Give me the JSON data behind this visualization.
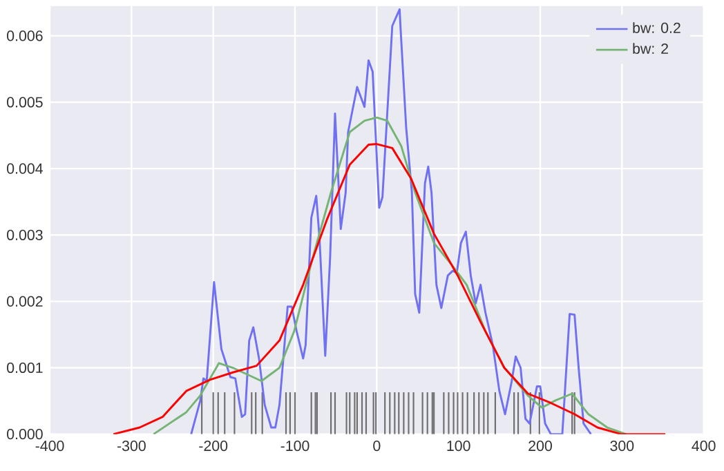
{
  "chart_data": {
    "type": "line",
    "xlim": [
      -400,
      400
    ],
    "ylim": [
      0,
      0.00645
    ],
    "xticks": [
      -400,
      -300,
      -200,
      -100,
      0,
      100,
      200,
      300,
      400
    ],
    "yticks": [
      {
        "value": 0,
        "label": "0.000"
      },
      {
        "value": 0.001,
        "label": "0.001"
      },
      {
        "value": 0.002,
        "label": "0.002"
      },
      {
        "value": 0.003,
        "label": "0.003"
      },
      {
        "value": 0.004,
        "label": "0.004"
      },
      {
        "value": 0.005,
        "label": "0.005"
      },
      {
        "value": 0.006,
        "label": "0.006"
      }
    ],
    "grid": true,
    "legend": "top right",
    "series": [
      {
        "type": "bar",
        "color": "#444444",
        "x": [
          -214,
          -200,
          -194,
          -186,
          -174,
          -153,
          -148,
          -140,
          -111,
          -106,
          -100,
          -80,
          -75,
          -73,
          -56,
          -51,
          -37,
          -33,
          -27,
          -24,
          -18,
          -13,
          -4,
          -1,
          10,
          16,
          22,
          27,
          33,
          39,
          45,
          56,
          62,
          68,
          70,
          82,
          88,
          94,
          99,
          105,
          111,
          119,
          125,
          131,
          136,
          145,
          168,
          173,
          188,
          199,
          239,
          242
        ],
        "values": [
          0.00063,
          0.00063,
          0.00063,
          0.00063,
          0.00063,
          0.00063,
          0.00063,
          0.00063,
          0.00063,
          0.00063,
          0.00063,
          0.00063,
          0.00063,
          0.00063,
          0.00063,
          0.00063,
          0.00063,
          0.00063,
          0.00063,
          0.00063,
          0.00063,
          0.00063,
          0.00063,
          0.00063,
          0.00063,
          0.00063,
          0.00063,
          0.00063,
          0.00063,
          0.00063,
          0.00063,
          0.00063,
          0.00063,
          0.00063,
          0.00063,
          0.00063,
          0.00063,
          0.00063,
          0.00063,
          0.00063,
          0.00063,
          0.00063,
          0.00063,
          0.00063,
          0.00063,
          0.00063,
          0.00063,
          0.00063,
          0.00063,
          0.00063,
          0.00063,
          0.00063
        ]
      },
      {
        "name": "bw: 0.2",
        "color": "#7070f2",
        "x": [
          -227,
          -216,
          -212,
          -208,
          -199,
          -190,
          -179,
          -173,
          -165,
          -161,
          -156,
          -151,
          -144,
          -137,
          -129,
          -124,
          -119,
          -109,
          -104,
          -98,
          -90,
          -87,
          -80,
          -74,
          -70,
          -63,
          -57,
          -51,
          -44,
          -38,
          -35,
          -30,
          -24,
          -15,
          -10,
          -5,
          3,
          7,
          19,
          28,
          29,
          36,
          43,
          47,
          52,
          59,
          63,
          67,
          73,
          79,
          87,
          93,
          98,
          103,
          109,
          115,
          121,
          127,
          133,
          142,
          150,
          157,
          165,
          170,
          176,
          182,
          187,
          196,
          200,
          206,
          213,
          227,
          236,
          242,
          247,
          253,
          262
        ],
        "values": [
          0,
          0.0005,
          0.00084,
          0.0008,
          0.00229,
          0.00128,
          0.00086,
          0.00084,
          0.00026,
          0.0003,
          0.00141,
          0.00161,
          0.00114,
          0.00044,
          0.0001,
          0.0001,
          0.00044,
          0.00192,
          0.00192,
          0.00155,
          0.00114,
          0.00134,
          0.00326,
          0.00359,
          0.00295,
          0.00118,
          0.00267,
          0.00483,
          0.00309,
          0.00364,
          0.00455,
          0.00486,
          0.00523,
          0.00493,
          0.00563,
          0.00546,
          0.00341,
          0.00357,
          0.00615,
          0.0064,
          0.00615,
          0.00462,
          0.00364,
          0.00211,
          0.00183,
          0.00378,
          0.00403,
          0.00364,
          0.00225,
          0.0019,
          0.00239,
          0.00246,
          0.00243,
          0.00288,
          0.00305,
          0.00239,
          0.00197,
          0.00225,
          0.00183,
          0.00134,
          0.00065,
          0.0003,
          0.00079,
          0.00117,
          0.001,
          0.00023,
          0.00016,
          0.00072,
          0.00072,
          0.00016,
          0,
          0,
          0.00181,
          0.0018,
          0.001,
          0.00016,
          0
        ]
      },
      {
        "name": "bw: 2",
        "color": "#76b476",
        "x": [
          -273,
          -233,
          -216,
          -193,
          -176,
          -141,
          -119,
          -101,
          -78,
          -56,
          -33,
          -15,
          0,
          13,
          30,
          47,
          70,
          93,
          110,
          133,
          156,
          185,
          202,
          219,
          239,
          259,
          282,
          305
        ],
        "values": [
          0,
          0.00033,
          0.00058,
          0.00107,
          0.001,
          0.0008,
          0.001,
          0.00155,
          0.00267,
          0.00364,
          0.00455,
          0.00472,
          0.00477,
          0.00472,
          0.00434,
          0.00364,
          0.00288,
          0.00253,
          0.00225,
          0.00155,
          0.001,
          0.00058,
          0.0004,
          0.00051,
          0.00061,
          0.0003,
          0.0001,
          0
        ]
      },
      {
        "color": "#ff0000",
        "x": [
          -322,
          -290,
          -262,
          -233,
          -204,
          -176,
          -147,
          -119,
          -90,
          -61,
          -33,
          -10,
          0,
          19,
          42,
          70,
          99,
          127,
          156,
          185,
          213,
          242,
          270,
          299,
          353
        ],
        "values": [
          0,
          0.0001,
          0.00026,
          0.00065,
          0.00082,
          0.00093,
          0.00103,
          0.00141,
          0.00225,
          0.00323,
          0.00406,
          0.00436,
          0.00437,
          0.00431,
          0.00385,
          0.00302,
          0.00239,
          0.00169,
          0.001,
          0.00061,
          0.00047,
          0.0003,
          0.0001,
          0,
          0
        ]
      }
    ]
  }
}
